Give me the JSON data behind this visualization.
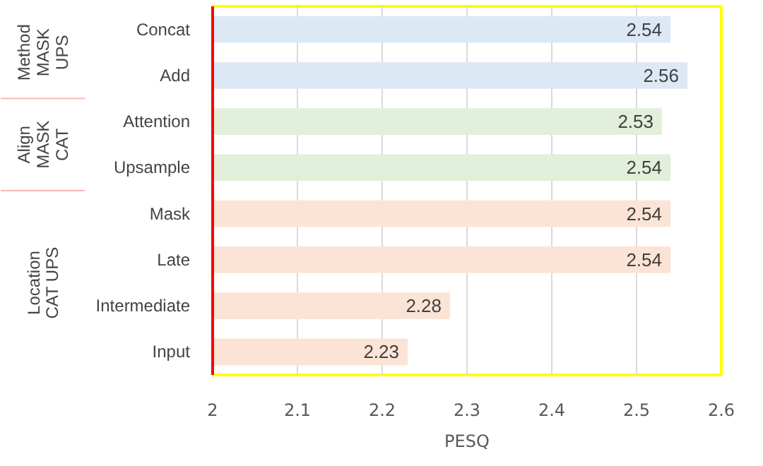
{
  "chart_data": {
    "type": "bar",
    "orientation": "horizontal",
    "xlabel": "PESQ",
    "categories": [
      "Concat",
      "Add",
      "Attention",
      "Upsample",
      "Mask",
      "Late",
      "Intermediate",
      "Input"
    ],
    "values": [
      2.54,
      2.56,
      2.53,
      2.54,
      2.54,
      2.54,
      2.28,
      2.23
    ],
    "colors": [
      "#dde8f5",
      "#dde8f5",
      "#e2efda",
      "#e2efda",
      "#fbe4d6",
      "#fbe4d6",
      "#fbe4d6",
      "#fbe4d6"
    ],
    "xlim": [
      2,
      2.6
    ],
    "xticks": [
      2,
      2.1,
      2.2,
      2.3,
      2.4,
      2.5,
      2.6
    ],
    "data_labels": true,
    "grid": "x",
    "annotations": [
      "Method\nMASK\nUPS",
      "Align\nMASK\nCAT",
      "Location\nCAT UPS"
    ]
  }
}
